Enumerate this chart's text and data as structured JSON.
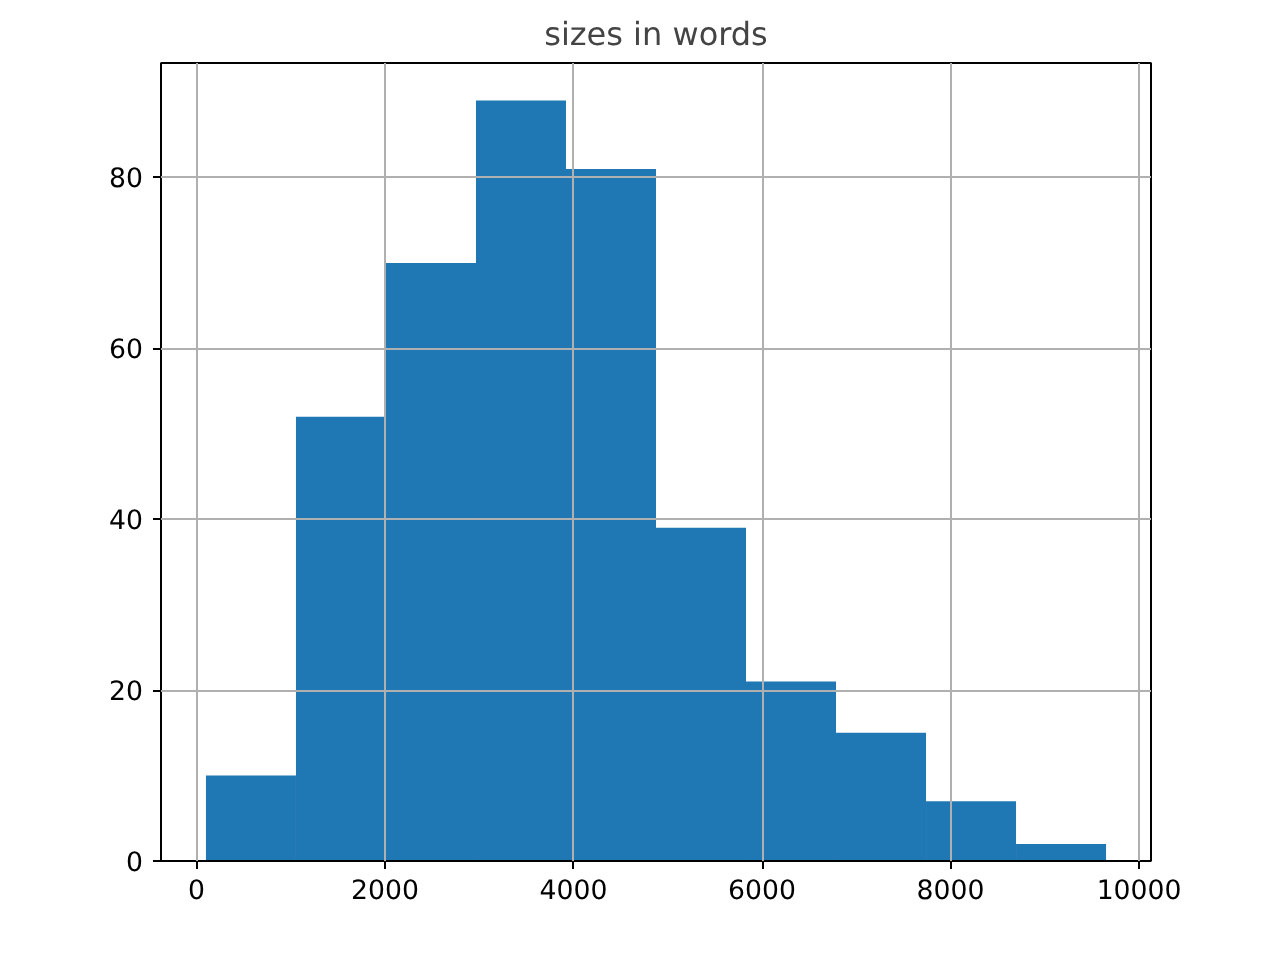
{
  "chart_data": {
    "type": "histogram",
    "title": "sizes in words",
    "bins": [
      100,
      1055,
      2010,
      2965,
      3920,
      4875,
      5830,
      6785,
      7740,
      8695,
      9650
    ],
    "values": [
      10,
      52,
      70,
      89,
      81,
      39,
      21,
      15,
      7,
      2
    ],
    "color": "#1f77b4",
    "xlim": [
      -377,
      10127
    ],
    "ylim": [
      0,
      93.4
    ],
    "xticks": [
      0,
      2000,
      4000,
      6000,
      8000,
      10000
    ],
    "yticks": [
      0,
      20,
      40,
      60,
      80
    ],
    "grid": true
  }
}
